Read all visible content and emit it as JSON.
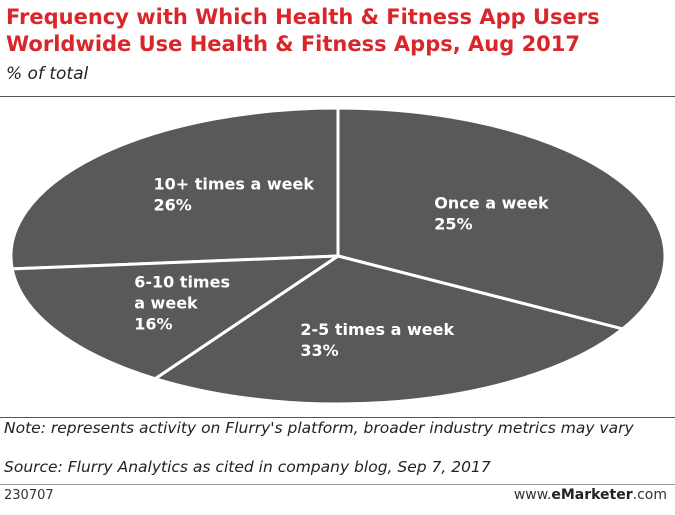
{
  "chart_data": {
    "type": "pie",
    "title": "Frequency with Which Health & Fitness App Users Worldwide Use Health & Fitness Apps, Aug 2017",
    "subtitle": "% of total",
    "unit": "%",
    "slices": [
      {
        "label_lines": [
          "10+ times a week"
        ],
        "value": 26,
        "value_label": "26%"
      },
      {
        "label_lines": [
          "Once a week"
        ],
        "value": 25,
        "value_label": "25%"
      },
      {
        "label_lines": [
          "2-5 times a week"
        ],
        "value": 33,
        "value_label": "33%"
      },
      {
        "label_lines": [
          "6-10 times",
          "a week"
        ],
        "value": 16,
        "value_label": "16%"
      }
    ],
    "colors": {
      "slice_fill": "#595959",
      "slice_border": "#ffffff",
      "label_text": "#ffffff",
      "title": "#d9262b"
    }
  },
  "footer": {
    "note": "Note: represents activity on Flurry's platform, broader industry metrics may vary",
    "source": "Source: Flurry Analytics as cited in company blog, Sep 7, 2017",
    "chart_id": "230707",
    "brand_prefix": "www.",
    "brand_main": "eMarketer",
    "brand_suffix": ".com"
  }
}
